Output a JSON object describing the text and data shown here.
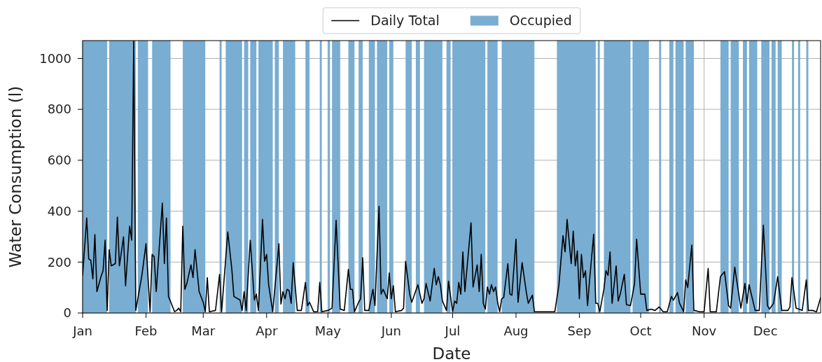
{
  "chart_data": {
    "type": "line",
    "xlabel": "Date",
    "ylabel": "Water Consumption (l)",
    "legend": "top",
    "grid": true,
    "xlim": [
      "--01-01",
      "--12-28"
    ],
    "xticks": [
      {
        "value": "--01-01",
        "label": "Jan"
      },
      {
        "value": "--02-01",
        "label": "Feb"
      },
      {
        "value": "--03-01",
        "label": "Mar"
      },
      {
        "value": "--04-01",
        "label": "Apr"
      },
      {
        "value": "--05-01",
        "label": "May"
      },
      {
        "value": "--06-01",
        "label": "Jun"
      },
      {
        "value": "--07-01",
        "label": "Jul"
      },
      {
        "value": "--08-01",
        "label": "Aug"
      },
      {
        "value": "--09-01",
        "label": "Sep"
      },
      {
        "value": "--10-01",
        "label": "Oct"
      },
      {
        "value": "--11-01",
        "label": "Nov"
      },
      {
        "value": "--12-01",
        "label": "Dec"
      }
    ],
    "ylim": [
      0,
      1070
    ],
    "yticks": [
      0,
      200,
      400,
      600,
      800,
      1000
    ],
    "x": [
      "--01-01",
      "--01-03",
      "--01-04",
      "--01-05",
      "--01-06",
      "--01-07",
      "--01-08",
      "--01-10",
      "--01-11",
      "--01-12",
      "--01-13",
      "--01-14",
      "--01-15",
      "--01-17",
      "--01-18",
      "--01-19",
      "--01-21",
      "--01-22",
      "--01-24",
      "--01-25",
      "--01-26",
      "--01-27",
      "--01-30",
      "--02-01",
      "--02-03",
      "--02-04",
      "--02-05",
      "--02-06",
      "--02-09",
      "--02-10",
      "--02-11",
      "--02-12",
      "--02-15",
      "--02-16",
      "--02-17",
      "--02-18",
      "--02-19",
      "--02-20",
      "--02-21",
      "--02-23",
      "--02-24",
      "--02-25",
      "--02-27",
      "--03-01",
      "--03-02",
      "--03-03",
      "--03-04",
      "--03-07",
      "--03-09",
      "--03-10",
      "--03-13",
      "--03-15",
      "--03-16",
      "--03-19",
      "--03-20",
      "--03-21",
      "--03-22",
      "--03-24",
      "--03-26",
      "--03-27",
      "--03-28",
      "--03-30",
      "--03-31",
      "--04-01",
      "--04-02",
      "--04-04",
      "--04-07",
      "--04-08",
      "--04-09",
      "--04-10",
      "--04-11",
      "--04-12",
      "--04-13",
      "--04-14",
      "--04-16",
      "--04-18",
      "--04-20",
      "--04-21",
      "--04-22",
      "--04-24",
      "--04-26",
      "--04-27",
      "--04-28",
      "--05-01",
      "--05-03",
      "--05-05",
      "--05-07",
      "--05-09",
      "--05-11",
      "--05-12",
      "--05-13",
      "--05-14",
      "--05-16",
      "--05-17",
      "--05-18",
      "--05-19",
      "--05-21",
      "--05-23",
      "--05-24",
      "--05-26",
      "--05-27",
      "--05-28",
      "--05-30",
      "--05-31",
      "--06-01",
      "--06-02",
      "--06-03",
      "--06-06",
      "--06-07",
      "--06-08",
      "--06-10",
      "--06-11",
      "--06-14",
      "--06-16",
      "--06-17",
      "--06-18",
      "--06-20",
      "--06-22",
      "--06-23",
      "--06-24",
      "--06-25",
      "--06-26",
      "--06-28",
      "--06-29",
      "--07-01",
      "--07-02",
      "--07-03",
      "--07-04",
      "--07-05",
      "--07-06",
      "--07-07",
      "--07-10",
      "--07-11",
      "--07-13",
      "--07-14",
      "--07-15",
      "--07-16",
      "--07-17",
      "--07-18",
      "--07-19",
      "--07-20",
      "--07-21",
      "--07-22",
      "--07-23",
      "--07-24",
      "--07-25",
      "--07-26",
      "--07-28",
      "--07-29",
      "--07-30",
      "--08-01",
      "--08-02",
      "--08-04",
      "--08-06",
      "--08-07",
      "--08-09",
      "--08-10",
      "--08-20",
      "--08-22",
      "--08-24",
      "--08-25",
      "--08-26",
      "--08-28",
      "--08-29",
      "--08-30",
      "--08-31",
      "--09-01",
      "--09-02",
      "--09-03",
      "--09-04",
      "--09-05",
      "--09-06",
      "--09-08",
      "--09-09",
      "--09-10",
      "--09-11",
      "--09-13",
      "--09-14",
      "--09-15",
      "--09-16",
      "--09-17",
      "--09-19",
      "--09-20",
      "--09-21",
      "--09-23",
      "--09-24",
      "--09-26",
      "--09-28",
      "--09-29",
      "--10-01",
      "--10-03",
      "--10-04",
      "--10-06",
      "--10-08",
      "--10-10",
      "--10-12",
      "--10-14",
      "--10-16",
      "--10-17",
      "--10-19",
      "--10-20",
      "--10-22",
      "--10-23",
      "--10-24",
      "--10-26",
      "--10-27",
      "--10-30",
      "--11-01",
      "--11-03",
      "--11-04",
      "--11-07",
      "--11-09",
      "--11-11",
      "--11-13",
      "--11-14",
      "--11-16",
      "--11-19",
      "--11-21",
      "--11-22",
      "--11-23",
      "--11-26",
      "--11-28",
      "--11-30",
      "--12-02",
      "--12-03",
      "--12-05",
      "--12-07",
      "--12-09",
      "--12-12",
      "--12-13",
      "--12-14",
      "--12-16",
      "--12-19",
      "--12-21",
      "--12-22",
      "--12-24",
      "--12-26",
      "--12-28"
    ],
    "series": [
      {
        "name": "Daily Total",
        "color": "#000000",
        "values": [
          148,
          373,
          212,
          207,
          134,
          308,
          84,
          143,
          166,
          286,
          10,
          249,
          185,
          194,
          377,
          185,
          299,
          107,
          341,
          286,
          1070,
          10,
          148,
          272,
          5,
          230,
          221,
          84,
          432,
          194,
          373,
          65,
          5,
          10,
          19,
          5,
          341,
          93,
          116,
          189,
          139,
          249,
          84,
          42,
          5,
          139,
          5,
          10,
          152,
          5,
          318,
          171,
          65,
          51,
          10,
          84,
          10,
          286,
          51,
          74,
          10,
          368,
          203,
          230,
          111,
          5,
          272,
          35,
          84,
          56,
          93,
          88,
          38,
          198,
          10,
          10,
          120,
          29,
          42,
          5,
          5,
          120,
          5,
          10,
          19,
          364,
          15,
          10,
          171,
          93,
          93,
          5,
          42,
          56,
          217,
          10,
          10,
          93,
          29,
          419,
          74,
          93,
          56,
          157,
          56,
          107,
          5,
          10,
          19,
          203,
          74,
          42,
          111,
          38,
          56,
          116,
          47,
          175,
          111,
          143,
          111,
          47,
          10,
          125,
          5,
          47,
          38,
          120,
          74,
          240,
          84,
          354,
          102,
          189,
          84,
          230,
          38,
          15,
          102,
          74,
          111,
          84,
          102,
          42,
          5,
          56,
          61,
          194,
          74,
          70,
          290,
          42,
          198,
          84,
          38,
          70,
          5,
          5,
          111,
          304,
          240,
          368,
          194,
          322,
          185,
          244,
          56,
          230,
          139,
          166,
          29,
          130,
          309,
          38,
          38,
          5,
          93,
          166,
          148,
          240,
          38,
          185,
          47,
          74,
          152,
          33,
          29,
          116,
          290,
          74,
          74,
          10,
          15,
          10,
          24,
          5,
          5,
          65,
          50,
          80,
          38,
          5,
          130,
          100,
          267,
          10,
          5,
          5,
          175,
          5,
          5,
          143,
          162,
          29,
          19,
          180,
          19,
          116,
          38,
          111,
          10,
          10,
          345,
          29,
          15,
          38,
          143,
          10,
          10,
          24,
          139,
          19,
          10,
          130,
          10,
          10,
          5,
          60
        ]
      }
    ],
    "bands": [
      {
        "axis": "x",
        "from": "--01-01",
        "to": "--01-13",
        "label": "Occupied",
        "color": "#79add2"
      },
      {
        "axis": "x",
        "from": "--01-14",
        "to": "--01-27",
        "color": "#79add2"
      },
      {
        "axis": "x",
        "from": "--01-28",
        "to": "--02-02",
        "color": "#79add2"
      },
      {
        "axis": "x",
        "from": "--02-04",
        "to": "--02-13",
        "color": "#79add2"
      },
      {
        "axis": "x",
        "from": "--02-19",
        "to": "--03-02",
        "color": "#79add2"
      },
      {
        "axis": "x",
        "from": "--03-09",
        "to": "--03-10",
        "color": "#79add2"
      },
      {
        "axis": "x",
        "from": "--03-12",
        "to": "--03-20",
        "color": "#79add2"
      },
      {
        "axis": "x",
        "from": "--03-21",
        "to": "--03-23",
        "color": "#79add2"
      },
      {
        "axis": "x",
        "from": "--03-24",
        "to": "--03-27",
        "color": "#79add2"
      },
      {
        "axis": "x",
        "from": "--03-28",
        "to": "--04-04",
        "color": "#79add2"
      },
      {
        "axis": "x",
        "from": "--04-05",
        "to": "--04-07",
        "color": "#79add2"
      },
      {
        "axis": "x",
        "from": "--04-09",
        "to": "--04-15",
        "color": "#79add2"
      },
      {
        "axis": "x",
        "from": "--04-20",
        "to": "--04-22",
        "color": "#79add2"
      },
      {
        "axis": "x",
        "from": "--04-27",
        "to": "--04-28",
        "color": "#79add2"
      },
      {
        "axis": "x",
        "from": "--05-01",
        "to": "--05-02",
        "color": "#79add2"
      },
      {
        "axis": "x",
        "from": "--05-03",
        "to": "--05-07",
        "color": "#79add2"
      },
      {
        "axis": "x",
        "from": "--05-11",
        "to": "--05-14",
        "color": "#79add2"
      },
      {
        "axis": "x",
        "from": "--05-16",
        "to": "--05-18",
        "color": "#79add2"
      },
      {
        "axis": "x",
        "from": "--05-21",
        "to": "--05-24",
        "color": "#79add2"
      },
      {
        "axis": "x",
        "from": "--05-25",
        "to": "--05-30",
        "color": "#79add2"
      },
      {
        "axis": "x",
        "from": "--05-31",
        "to": "--06-02",
        "color": "#79add2"
      },
      {
        "axis": "x",
        "from": "--06-08",
        "to": "--06-11",
        "color": "#79add2"
      },
      {
        "axis": "x",
        "from": "--06-13",
        "to": "--06-15",
        "color": "#79add2"
      },
      {
        "axis": "x",
        "from": "--06-17",
        "to": "--06-26",
        "color": "#79add2"
      },
      {
        "axis": "x",
        "from": "--06-28",
        "to": "--06-30",
        "color": "#79add2"
      },
      {
        "axis": "x",
        "from": "--07-01",
        "to": "--07-17",
        "color": "#79add2"
      },
      {
        "axis": "x",
        "from": "--07-18",
        "to": "--07-23",
        "color": "#79add2"
      },
      {
        "axis": "x",
        "from": "--07-25",
        "to": "--08-10",
        "color": "#79add2"
      },
      {
        "axis": "x",
        "from": "--08-21",
        "to": "--09-09",
        "color": "#79add2"
      },
      {
        "axis": "x",
        "from": "--09-10",
        "to": "--09-11",
        "color": "#79add2"
      },
      {
        "axis": "x",
        "from": "--09-13",
        "to": "--09-26",
        "color": "#79add2"
      },
      {
        "axis": "x",
        "from": "--09-27",
        "to": "--10-05",
        "color": "#79add2"
      },
      {
        "axis": "x",
        "from": "--10-10",
        "to": "--10-11",
        "color": "#79add2"
      },
      {
        "axis": "x",
        "from": "--10-15",
        "to": "--10-17",
        "color": "#79add2"
      },
      {
        "axis": "x",
        "from": "--10-18",
        "to": "--10-22",
        "color": "#79add2"
      },
      {
        "axis": "x",
        "from": "--10-23",
        "to": "--10-27",
        "color": "#79add2"
      },
      {
        "axis": "x",
        "from": "--11-09",
        "to": "--11-13",
        "color": "#79add2"
      },
      {
        "axis": "x",
        "from": "--11-14",
        "to": "--11-18",
        "color": "#79add2"
      },
      {
        "axis": "x",
        "from": "--11-20",
        "to": "--11-22",
        "color": "#79add2"
      },
      {
        "axis": "x",
        "from": "--11-23",
        "to": "--11-27",
        "color": "#79add2"
      },
      {
        "axis": "x",
        "from": "--11-29",
        "to": "--12-03",
        "color": "#79add2"
      },
      {
        "axis": "x",
        "from": "--12-04",
        "to": "--12-06",
        "color": "#79add2"
      },
      {
        "axis": "x",
        "from": "--12-07",
        "to": "--12-09",
        "color": "#79add2"
      },
      {
        "axis": "x",
        "from": "--12-14",
        "to": "--12-15",
        "color": "#79add2"
      },
      {
        "axis": "x",
        "from": "--12-17",
        "to": "--12-18",
        "color": "#79add2"
      },
      {
        "axis": "x",
        "from": "--12-21",
        "to": "--12-22",
        "color": "#79add2"
      }
    ]
  }
}
